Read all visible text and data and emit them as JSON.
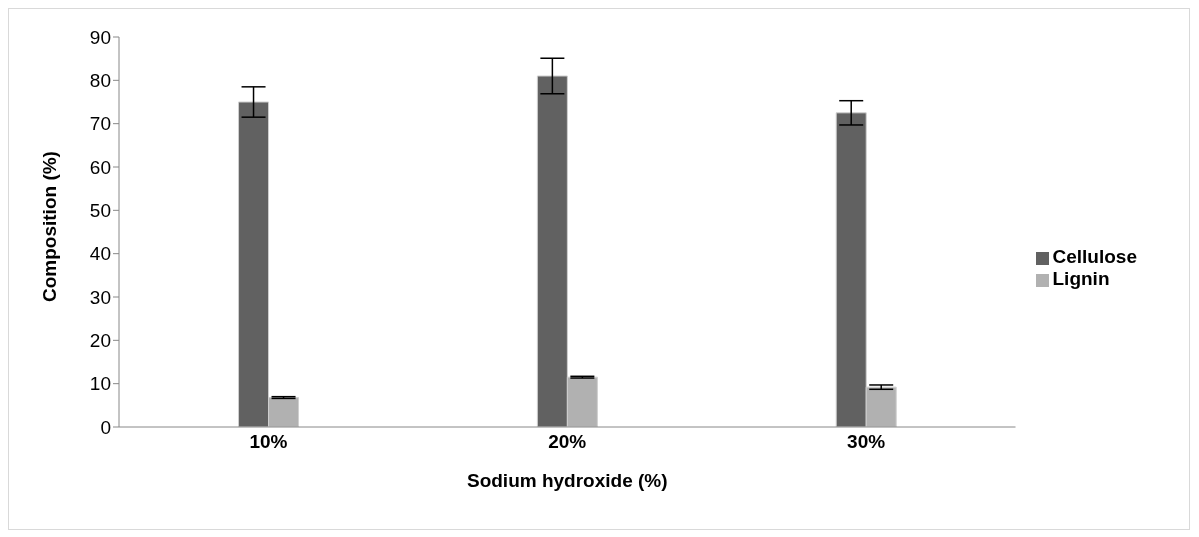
{
  "chart_data": {
    "type": "bar",
    "xlabel": "Sodium hydroxide (%)",
    "ylabel": "Composition (%)",
    "categories": [
      "10%",
      "20%",
      "30%"
    ],
    "series": [
      {
        "name": "Cellulose",
        "color": "#616161",
        "values": [
          75.0,
          81.0,
          72.5
        ],
        "errors": [
          3.5,
          4.1,
          2.8
        ]
      },
      {
        "name": "Lignin",
        "color": "#b1b1b1",
        "values": [
          6.8,
          11.5,
          9.2
        ],
        "errors": [
          0.2,
          0.2,
          0.5
        ]
      }
    ],
    "ylim": [
      0,
      90
    ],
    "yticks": [
      0,
      10,
      20,
      30,
      40,
      50,
      60,
      70,
      80,
      90
    ],
    "grid": false,
    "legend": "right"
  }
}
